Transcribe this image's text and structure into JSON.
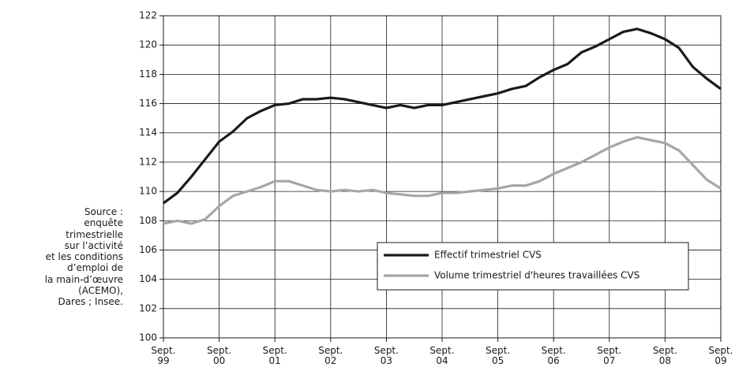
{
  "chart_data": {
    "type": "line",
    "categories": [
      "Sept. 99",
      null,
      null,
      null,
      "Sept. 00",
      null,
      null,
      null,
      "Sept. 01",
      null,
      null,
      null,
      "Sept. 02",
      null,
      null,
      null,
      "Sept. 03",
      null,
      null,
      null,
      "Sept. 04",
      null,
      null,
      null,
      "Sept. 05",
      null,
      null,
      null,
      "Sept. 06",
      null,
      null,
      null,
      "Sept. 07",
      null,
      null,
      null,
      "Sept. 08",
      null,
      null,
      null,
      "Sept. 09"
    ],
    "series": [
      {
        "name": "Effectif trimestriel CVS",
        "color": "#1a1a1a",
        "values": [
          109.2,
          109.9,
          111.0,
          112.2,
          113.4,
          114.1,
          115.0,
          115.5,
          115.9,
          116.0,
          116.3,
          116.3,
          116.4,
          116.3,
          116.1,
          115.9,
          115.7,
          115.9,
          115.7,
          115.9,
          115.9,
          116.1,
          116.3,
          116.5,
          116.7,
          117.0,
          117.2,
          117.8,
          118.3,
          118.7,
          119.5,
          119.9,
          120.4,
          120.9,
          121.1,
          120.8,
          120.4,
          119.8,
          118.5,
          117.7,
          117.0
        ]
      },
      {
        "name": "Volume trimestriel d'heures travaillées CVS",
        "color": "#a6a6a6",
        "values": [
          107.8,
          108.0,
          107.8,
          108.1,
          109.0,
          109.7,
          110.0,
          110.3,
          110.7,
          110.7,
          110.4,
          110.1,
          110.0,
          110.1,
          110.0,
          110.1,
          109.9,
          109.8,
          109.7,
          109.7,
          109.9,
          109.9,
          110.0,
          110.1,
          110.2,
          110.4,
          110.4,
          110.7,
          111.2,
          111.6,
          112.0,
          112.5,
          113.0,
          113.4,
          113.7,
          113.5,
          113.3,
          112.8,
          111.8,
          110.8,
          110.2
        ]
      }
    ],
    "ylim": [
      100,
      122
    ],
    "yticks": [
      100,
      102,
      104,
      106,
      108,
      110,
      112,
      114,
      116,
      118,
      120,
      122
    ],
    "grid": true,
    "legend": "lower-right",
    "annotations": [
      "Source :",
      "enquête",
      "trimestrielle",
      "sur l’activité",
      "et les conditions",
      "d’emploi de",
      "la main-d’œuvre",
      "(ACEMO),",
      "Dares ; Insee."
    ]
  }
}
